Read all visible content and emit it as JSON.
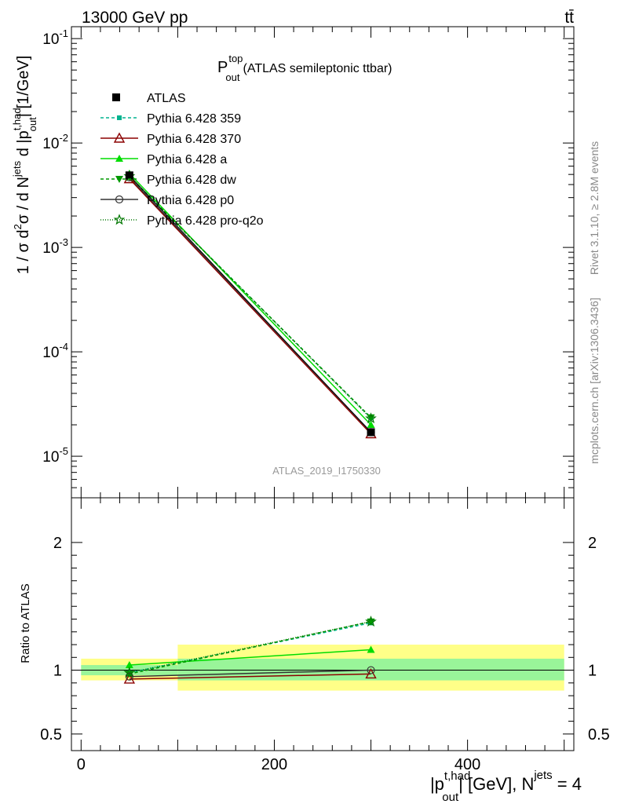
{
  "header": {
    "energy_label": "13000 GeV pp",
    "process_label": "tt̄"
  },
  "side_labels": {
    "rivet": "Rivet 3.1.10, ≥ 2.8M events",
    "mcplots": "mcplots.cern.ch [arXiv:1306.3436]"
  },
  "chart_data": [
    {
      "type": "line",
      "title_main": "P",
      "title_sup": "top",
      "title_sub": "out",
      "title_rest": "(ATLAS semileptonic ttbar)",
      "watermark": "ATLAS_2019_I1750330",
      "ylabel": "1 / σ d²σ / d N^jets d |p_out^t,had| [1/GeV]",
      "yscale": "log",
      "ylim": [
        4e-06,
        0.13
      ],
      "xlim": [
        -10,
        510
      ],
      "ytick_labels": [
        "10^-5",
        "10^-4",
        "10^-3",
        "10^-2",
        "10^-1"
      ],
      "legend_placement": "top-left",
      "x": [
        50,
        300
      ],
      "data": {
        "name": "ATLAS",
        "values": [
          0.0049,
          1.7e-05
        ],
        "color": "#000000"
      },
      "series": [
        {
          "name": "Pythia 6.428 359",
          "values": [
            0.0048,
            2.33e-05
          ],
          "color": "#00b38f",
          "marker": "square",
          "dash": "4,3"
        },
        {
          "name": "Pythia 6.428 370",
          "values": [
            0.00455,
            1.64e-05
          ],
          "color": "#8b0000",
          "marker": "open-triangle",
          "dash": ""
        },
        {
          "name": "Pythia 6.428 a",
          "values": [
            0.0051,
            2e-05
          ],
          "color": "#00dd00",
          "marker": "triangle",
          "dash": ""
        },
        {
          "name": "Pythia 6.428 dw",
          "values": [
            0.00475,
            2.35e-05
          ],
          "color": "#009900",
          "marker": "triangle-down",
          "dash": "4,3"
        },
        {
          "name": "Pythia 6.428 p0",
          "values": [
            0.0047,
            1.7e-05
          ],
          "color": "#333333",
          "marker": "open-circle",
          "dash": ""
        },
        {
          "name": "Pythia 6.428 pro-q2o",
          "values": [
            0.0048,
            2.3e-05
          ],
          "color": "#007700",
          "marker": "star",
          "dash": "1,2"
        }
      ]
    },
    {
      "type": "line",
      "ylabel": "Ratio to ATLAS",
      "xlabel": "|p_out^t,had| [GeV], N^jets = 4",
      "ylim": [
        0.37,
        2.35
      ],
      "xlim": [
        -10,
        510
      ],
      "yticks": [
        0.5,
        1,
        2
      ],
      "ytick_labels": [
        "0.5",
        "1",
        "2"
      ],
      "xticks": [
        0,
        200,
        400
      ],
      "xtick_labels": [
        "0",
        "200",
        "400"
      ],
      "bands": [
        {
          "x": [
            0,
            100
          ],
          "yellow": [
            0.92,
            1.09
          ],
          "green": [
            0.96,
            1.04
          ]
        },
        {
          "x": [
            100,
            500
          ],
          "yellow": [
            0.84,
            1.2
          ],
          "green": [
            0.92,
            1.09
          ]
        }
      ],
      "x": [
        50,
        300
      ],
      "series": [
        {
          "name": "Pythia 6.428 359",
          "values": [
            0.98,
            1.37
          ],
          "color": "#00b38f",
          "marker": "square",
          "dash": "4,3"
        },
        {
          "name": "Pythia 6.428 370",
          "values": [
            0.93,
            0.97
          ],
          "color": "#8b0000",
          "marker": "open-triangle",
          "dash": ""
        },
        {
          "name": "Pythia 6.428 a",
          "values": [
            1.04,
            1.16
          ],
          "color": "#00dd00",
          "marker": "triangle",
          "dash": ""
        },
        {
          "name": "Pythia 6.428 dw",
          "values": [
            0.97,
            1.38
          ],
          "color": "#009900",
          "marker": "triangle-down",
          "dash": "4,3"
        },
        {
          "name": "Pythia 6.428 p0",
          "values": [
            0.95,
            1.0
          ],
          "color": "#333333",
          "marker": "open-circle",
          "dash": ""
        },
        {
          "name": "Pythia 6.428 pro-q2o",
          "values": [
            0.98,
            1.38
          ],
          "color": "#007700",
          "marker": "star",
          "dash": "1,2"
        }
      ]
    }
  ]
}
